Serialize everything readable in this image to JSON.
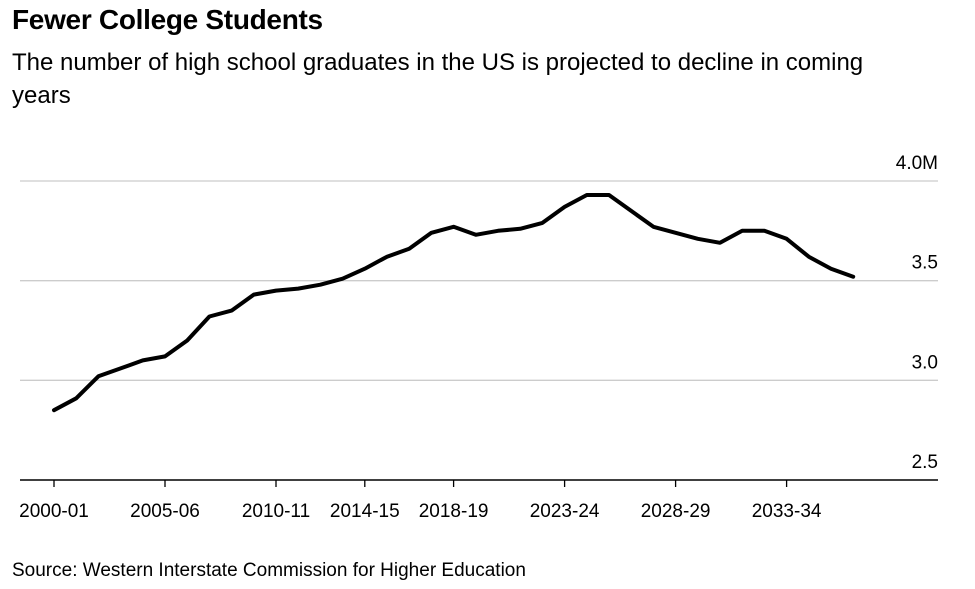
{
  "header": {
    "title": "Fewer College Students",
    "subtitle": "The number of high school graduates in the US is projected to decline in coming years"
  },
  "footer": {
    "source": "Source: Western Interstate Commission for Higher Education"
  },
  "colors": {
    "line": "#000000",
    "grid": "#cccccc",
    "axis": "#000000",
    "text": "#000000"
  },
  "chart_data": {
    "type": "line",
    "title": "Fewer College Students",
    "subtitle": "The number of high school graduates in the US is projected to decline in coming years",
    "xlabel": "",
    "ylabel": "",
    "ylim": [
      2.5,
      4.0
    ],
    "y_ticks": [
      2.5,
      3.0,
      3.5,
      4.0
    ],
    "y_tick_labels": [
      "2.5",
      "3.0",
      "3.5",
      "4.0M"
    ],
    "x_tick_labels": [
      "2000-01",
      "2005-06",
      "2010-11",
      "2014-15",
      "2018-19",
      "2023-24",
      "2028-29",
      "2033-34"
    ],
    "x_tick_indices": [
      0,
      5,
      10,
      14,
      18,
      23,
      28,
      33
    ],
    "grid": true,
    "series": [
      {
        "name": "High school graduates",
        "x": [
          "2000-01",
          "2001-02",
          "2002-03",
          "2003-04",
          "2004-05",
          "2005-06",
          "2006-07",
          "2007-08",
          "2008-09",
          "2009-10",
          "2010-11",
          "2011-12",
          "2012-13",
          "2013-14",
          "2014-15",
          "2015-16",
          "2016-17",
          "2017-18",
          "2018-19",
          "2019-20",
          "2020-21",
          "2021-22",
          "2022-23",
          "2023-24",
          "2024-25",
          "2025-26",
          "2026-27",
          "2027-28",
          "2028-29",
          "2029-30",
          "2030-31",
          "2031-32",
          "2032-33",
          "2033-34",
          "2034-35",
          "2035-36",
          "2036-37"
        ],
        "values": [
          2.85,
          2.91,
          3.02,
          3.06,
          3.1,
          3.12,
          3.2,
          3.32,
          3.35,
          3.43,
          3.45,
          3.46,
          3.48,
          3.51,
          3.56,
          3.62,
          3.66,
          3.74,
          3.77,
          3.73,
          3.75,
          3.76,
          3.79,
          3.87,
          3.93,
          3.93,
          3.85,
          3.77,
          3.74,
          3.71,
          3.69,
          3.75,
          3.75,
          3.71,
          3.62,
          3.56,
          3.52
        ]
      }
    ]
  }
}
